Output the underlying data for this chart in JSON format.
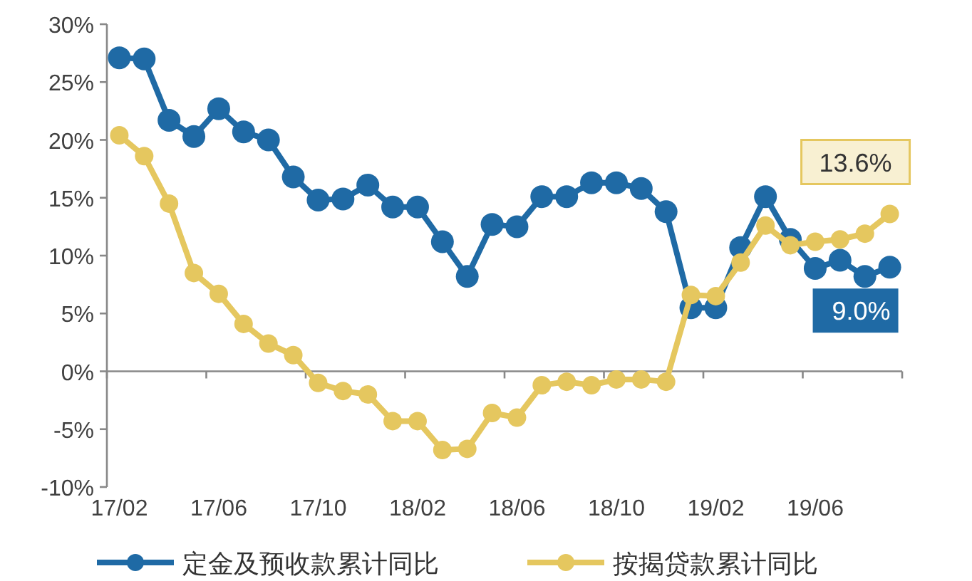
{
  "chart_data": {
    "type": "line",
    "categories": [
      "17/02",
      null,
      null,
      null,
      "17/06",
      null,
      null,
      null,
      "17/10",
      null,
      null,
      null,
      "18/02",
      null,
      null,
      null,
      "18/06",
      null,
      null,
      null,
      "18/10",
      null,
      null,
      null,
      "19/02",
      null,
      null,
      null,
      "19/06",
      null,
      null,
      null
    ],
    "series": [
      {
        "name": "定金及预收款累计同比",
        "color": "#1f6aa5",
        "values": [
          27.1,
          27.0,
          21.7,
          20.3,
          22.7,
          20.7,
          20.0,
          16.8,
          14.8,
          14.9,
          16.1,
          14.2,
          14.2,
          11.2,
          8.2,
          12.7,
          12.5,
          15.1,
          15.1,
          16.3,
          16.3,
          15.8,
          13.8,
          5.5,
          5.5,
          10.7,
          15.1,
          11.4,
          8.9,
          9.6,
          8.2,
          9.0
        ],
        "value_labels": [
          null,
          null,
          null,
          null,
          null,
          null,
          null,
          null,
          null,
          null,
          null,
          null,
          null,
          null,
          null,
          null,
          null,
          null,
          null,
          null,
          null,
          null,
          null,
          null,
          null,
          null,
          null,
          null,
          null,
          null,
          null,
          "9.0%"
        ]
      },
      {
        "name": "按揭贷款累计同比",
        "color": "#e5c75f",
        "values": [
          20.4,
          18.6,
          14.5,
          8.5,
          6.7,
          4.1,
          2.4,
          1.4,
          -1.0,
          -1.7,
          -2.0,
          -4.3,
          -4.3,
          -6.8,
          -6.7,
          -3.6,
          -4.0,
          -1.2,
          -0.9,
          -1.2,
          -0.7,
          -0.7,
          -0.9,
          6.6,
          6.5,
          9.4,
          12.6,
          10.9,
          11.2,
          11.4,
          11.9,
          13.6
        ],
        "value_labels": [
          null,
          null,
          null,
          null,
          null,
          null,
          null,
          null,
          null,
          null,
          null,
          null,
          null,
          null,
          null,
          null,
          null,
          null,
          null,
          null,
          null,
          null,
          null,
          null,
          null,
          null,
          null,
          null,
          null,
          null,
          null,
          "13.6%"
        ]
      }
    ],
    "ylim": [
      -10,
      30
    ],
    "yticks": [
      {
        "value": -10,
        "label": "-10%"
      },
      {
        "value": -5,
        "label": "-5%"
      },
      {
        "value": 0,
        "label": "0%"
      },
      {
        "value": 5,
        "label": "5%"
      },
      {
        "value": 10,
        "label": "10%"
      },
      {
        "value": 15,
        "label": "15%"
      },
      {
        "value": 20,
        "label": "20%"
      },
      {
        "value": 25,
        "label": "25%"
      },
      {
        "value": 30,
        "label": "30%"
      }
    ],
    "legend": "bottom",
    "marker": "circle",
    "line_style": "solid"
  }
}
